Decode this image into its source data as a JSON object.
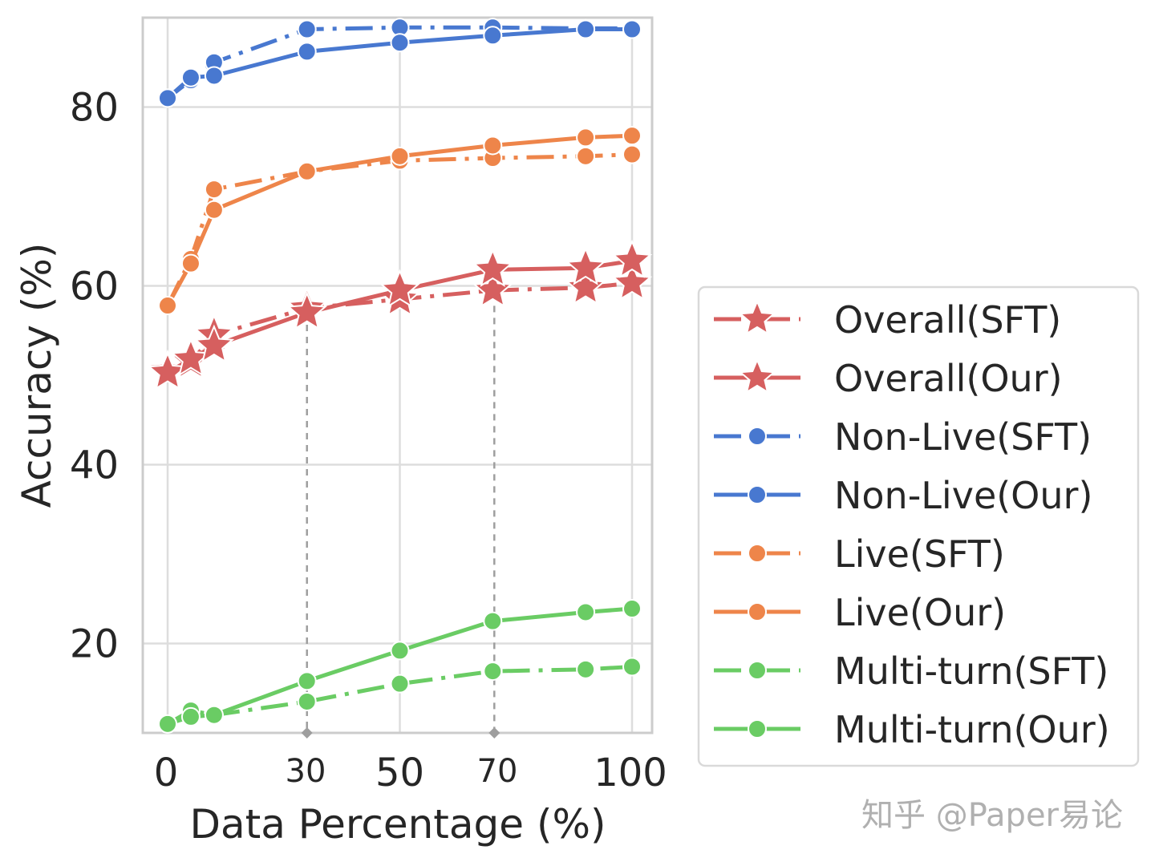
{
  "chart_data": {
    "type": "line",
    "title": "",
    "xlabel": "Data Percentage (%)",
    "ylabel": "Accuracy (%)",
    "xlim": [
      0,
      100
    ],
    "ylim": [
      10,
      90
    ],
    "xticks": [
      0,
      30,
      50,
      70,
      100
    ],
    "yticks": [
      20,
      40,
      60,
      80
    ],
    "x": [
      0,
      5,
      10,
      30,
      50,
      70,
      90,
      100
    ],
    "grid": true,
    "legend_position": "right",
    "series": [
      {
        "name": "Overall(SFT)",
        "color": "#d65f5f",
        "dash": "dashdot",
        "marker": "star",
        "values": [
          50.5,
          51.5,
          54.5,
          57.5,
          58.5,
          59.5,
          59.8,
          60.3
        ]
      },
      {
        "name": "Overall(Our)",
        "color": "#d65f5f",
        "dash": "solid",
        "marker": "star",
        "values": [
          50.3,
          51.8,
          53.3,
          57.0,
          59.5,
          61.8,
          62.0,
          62.8
        ]
      },
      {
        "name": "Non-Live(SFT)",
        "color": "#4878d0",
        "dash": "dashdot",
        "marker": "circle",
        "values": [
          81.0,
          83.0,
          85.0,
          88.7,
          88.9,
          88.9,
          88.8,
          88.8
        ]
      },
      {
        "name": "Non-Live(Our)",
        "color": "#4878d0",
        "dash": "solid",
        "marker": "circle",
        "values": [
          81.0,
          83.3,
          83.5,
          86.2,
          87.2,
          88.0,
          88.7,
          88.7
        ]
      },
      {
        "name": "Live(SFT)",
        "color": "#ee854a",
        "dash": "dashdot",
        "marker": "circle",
        "values": [
          57.8,
          63.0,
          70.8,
          72.8,
          74.0,
          74.3,
          74.5,
          74.7
        ]
      },
      {
        "name": "Live(Our)",
        "color": "#ee854a",
        "dash": "solid",
        "marker": "circle",
        "values": [
          57.8,
          62.5,
          68.5,
          72.8,
          74.5,
          75.7,
          76.6,
          76.8
        ]
      },
      {
        "name": "Multi-turn(SFT)",
        "color": "#6acc64",
        "dash": "dashdot",
        "marker": "circle",
        "values": [
          11.0,
          12.5,
          12.0,
          13.5,
          15.5,
          16.9,
          17.1,
          17.4
        ]
      },
      {
        "name": "Multi-turn(Our)",
        "color": "#6acc64",
        "dash": "solid",
        "marker": "circle",
        "values": [
          11.0,
          11.8,
          12.0,
          15.8,
          19.2,
          22.5,
          23.5,
          23.9
        ]
      }
    ],
    "annotations": [
      {
        "type": "vline",
        "x": 30,
        "from_y": 57.0,
        "color": "#9e9e9e"
      },
      {
        "type": "vline",
        "x": 70,
        "from_y": 61.8,
        "color": "#9e9e9e"
      }
    ]
  },
  "watermark": "知乎 @Paper易论"
}
